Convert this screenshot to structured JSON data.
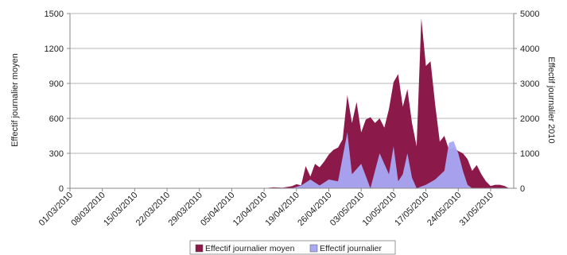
{
  "chart_data": {
    "type": "area",
    "title": "",
    "x": [
      "01/03/2010",
      "08/03/2010",
      "15/03/2010",
      "22/03/2010",
      "29/03/2010",
      "05/04/2010",
      "12/04/2010",
      "19/04/2010",
      "26/04/2010",
      "03/05/2010",
      "10/05/2010",
      "17/05/2010",
      "24/05/2010",
      "31/05/2010"
    ],
    "y_left": {
      "label": "Effectif journalier moyen",
      "range": [
        0,
        1500
      ],
      "ticks": [
        0,
        300,
        600,
        900,
        1200,
        1500
      ]
    },
    "y_right": {
      "label": "Effectif journalier 2010",
      "range": [
        0,
        5000
      ],
      "ticks": [
        0,
        1000,
        2000,
        3000,
        4000,
        5000
      ]
    },
    "grid": true,
    "legend_position": "bottom",
    "series": [
      {
        "name": "Effectif journalier moyen",
        "axis": "left",
        "color": "#8b1a4a",
        "points": [
          [
            "01/03/2010",
            0
          ],
          [
            "12/04/2010",
            0
          ],
          [
            "14/04/2010",
            8
          ],
          [
            "16/04/2010",
            5
          ],
          [
            "18/04/2010",
            18
          ],
          [
            "19/04/2010",
            35
          ],
          [
            "20/04/2010",
            25
          ],
          [
            "21/04/2010",
            190
          ],
          [
            "22/04/2010",
            100
          ],
          [
            "23/04/2010",
            210
          ],
          [
            "24/04/2010",
            180
          ],
          [
            "25/04/2010",
            230
          ],
          [
            "26/04/2010",
            290
          ],
          [
            "27/04/2010",
            330
          ],
          [
            "28/04/2010",
            350
          ],
          [
            "29/04/2010",
            420
          ],
          [
            "30/04/2010",
            800
          ],
          [
            "01/05/2010",
            560
          ],
          [
            "02/05/2010",
            740
          ],
          [
            "03/05/2010",
            480
          ],
          [
            "04/05/2010",
            590
          ],
          [
            "05/05/2010",
            610
          ],
          [
            "06/05/2010",
            560
          ],
          [
            "07/05/2010",
            600
          ],
          [
            "08/05/2010",
            520
          ],
          [
            "09/05/2010",
            680
          ],
          [
            "10/05/2010",
            910
          ],
          [
            "11/05/2010",
            980
          ],
          [
            "12/05/2010",
            700
          ],
          [
            "13/05/2010",
            850
          ],
          [
            "14/05/2010",
            560
          ],
          [
            "15/05/2010",
            360
          ],
          [
            "16/05/2010",
            1460
          ],
          [
            "17/05/2010",
            1050
          ],
          [
            "18/05/2010",
            1090
          ],
          [
            "19/05/2010",
            720
          ],
          [
            "20/05/2010",
            400
          ],
          [
            "21/05/2010",
            450
          ],
          [
            "22/05/2010",
            330
          ],
          [
            "23/05/2010",
            350
          ],
          [
            "24/05/2010",
            320
          ],
          [
            "25/05/2010",
            300
          ],
          [
            "26/05/2010",
            250
          ],
          [
            "27/05/2010",
            150
          ],
          [
            "28/05/2010",
            200
          ],
          [
            "29/05/2010",
            120
          ],
          [
            "30/05/2010",
            60
          ],
          [
            "31/05/2010",
            20
          ],
          [
            "01/06/2010",
            30
          ],
          [
            "02/06/2010",
            30
          ],
          [
            "03/06/2010",
            20
          ],
          [
            "04/06/2010",
            0
          ]
        ]
      },
      {
        "name": "Effectif journalier",
        "axis": "right",
        "color": "#a9a9f5",
        "points": [
          [
            "01/03/2010",
            0
          ],
          [
            "18/04/2010",
            0
          ],
          [
            "20/04/2010",
            80
          ],
          [
            "22/04/2010",
            250
          ],
          [
            "24/04/2010",
            80
          ],
          [
            "26/04/2010",
            250
          ],
          [
            "28/04/2010",
            200
          ],
          [
            "30/04/2010",
            1600
          ],
          [
            "01/05/2010",
            400
          ],
          [
            "03/05/2010",
            700
          ],
          [
            "05/05/2010",
            0
          ],
          [
            "07/05/2010",
            1000
          ],
          [
            "09/05/2010",
            400
          ],
          [
            "10/05/2010",
            1200
          ],
          [
            "11/05/2010",
            200
          ],
          [
            "12/05/2010",
            400
          ],
          [
            "13/05/2010",
            1000
          ],
          [
            "14/05/2010",
            300
          ],
          [
            "15/05/2010",
            0
          ],
          [
            "17/05/2010",
            100
          ],
          [
            "19/05/2010",
            250
          ],
          [
            "21/05/2010",
            500
          ],
          [
            "22/05/2010",
            1300
          ],
          [
            "23/05/2010",
            1350
          ],
          [
            "24/05/2010",
            1000
          ],
          [
            "25/05/2010",
            500
          ],
          [
            "26/05/2010",
            100
          ],
          [
            "27/05/2010",
            0
          ],
          [
            "04/06/2010",
            0
          ]
        ]
      }
    ]
  }
}
